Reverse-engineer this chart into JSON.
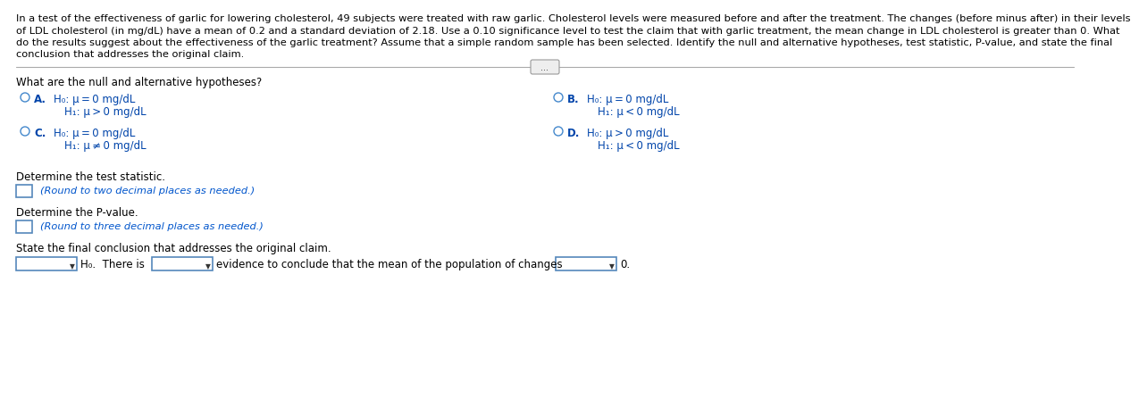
{
  "bg_color": "#ffffff",
  "text_color": "#000000",
  "blue_color": "#0066cc",
  "dark_blue": "#003399",
  "option_color": "#0044aa",
  "hint_color": "#0055cc",
  "paragraph_text_lines": [
    "In a test of the effectiveness of garlic for lowering cholesterol, 49 subjects were treated with raw garlic. Cholesterol levels were measured before and after the treatment. The changes (before minus after) in their levels",
    "of LDL cholesterol (in mg/dL) have a mean of 0.2 and a standard deviation of 2.18. Use a 0.10 significance level to test the claim that with garlic treatment, the mean change in LDL cholesterol is greater than 0. What",
    "do the results suggest about the effectiveness of the garlic treatment? Assume that a simple random sample has been selected. Identify the null and alternative hypotheses, test statistic, P-value, and state the final",
    "conclusion that addresses the original claim."
  ],
  "question1": "What are the null and alternative hypotheses?",
  "optA_line1": "H₀: μ = 0 mg/dL",
  "optA_line2": "H₁: μ > 0 mg/dL",
  "optB_line1": "H₀: μ = 0 mg/dL",
  "optB_line2": "H₁: μ < 0 mg/dL",
  "optC_line1": "H₀: μ = 0 mg/dL",
  "optC_line2": "H₁: μ ≠ 0 mg/dL",
  "optD_line1": "H₀: μ > 0 mg/dL",
  "optD_line2": "H₁: μ < 0 mg/dL",
  "label_A": "A.",
  "label_B": "B.",
  "label_C": "C.",
  "label_D": "D.",
  "question2": "Determine the test statistic.",
  "hint2": "(Round to two decimal places as needed.)",
  "question3": "Determine the P-value.",
  "hint3": "(Round to three decimal places as needed.)",
  "question4": "State the final conclusion that addresses the original claim.",
  "conclusion_text": "evidence to conclude that the mean of the population of changes",
  "conclusion_end": "0.",
  "reject_label": "H₀.  There is",
  "dots_text": "..."
}
